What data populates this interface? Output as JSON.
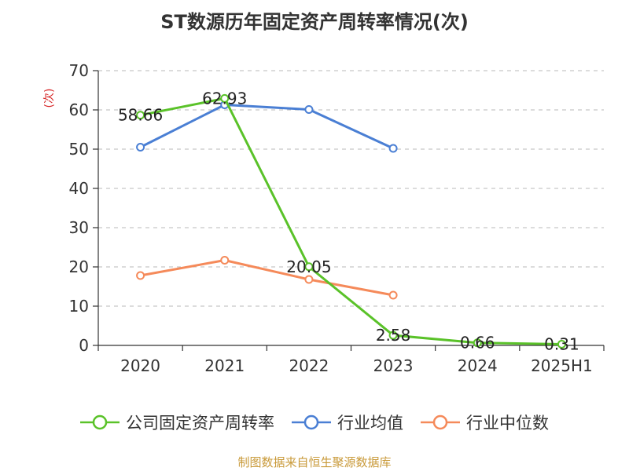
{
  "title": "ST数源历年固定资产周转率情况(次)",
  "source": "制图数据来自恒生聚源数据库",
  "chart_data": {
    "type": "line",
    "title": "ST数源历年固定资产周转率情况(次)",
    "ylabel": "(次)",
    "xlabel": "",
    "categories": [
      "2020",
      "2021",
      "2022",
      "2023",
      "2024",
      "2025H1"
    ],
    "ylim": [
      0,
      70
    ],
    "yticks": [
      0,
      10,
      20,
      30,
      40,
      50,
      60,
      70
    ],
    "grid": true,
    "legend_position": "bottom",
    "series": [
      {
        "name": "公司固定资产周转率",
        "color": "#5ac229",
        "values": [
          58.66,
          62.93,
          20.05,
          2.58,
          0.66,
          0.31
        ],
        "labels": [
          "58.66",
          "62.93",
          "20.05",
          "2.58",
          "0.66",
          "0.31"
        ]
      },
      {
        "name": "行业均值",
        "color": "#4a7fd4",
        "values": [
          50.5,
          61.3,
          60.1,
          50.2,
          null,
          null
        ]
      },
      {
        "name": "行业中位数",
        "color": "#f58a5a",
        "values": [
          17.8,
          21.7,
          16.8,
          12.8,
          null,
          null
        ]
      }
    ]
  }
}
